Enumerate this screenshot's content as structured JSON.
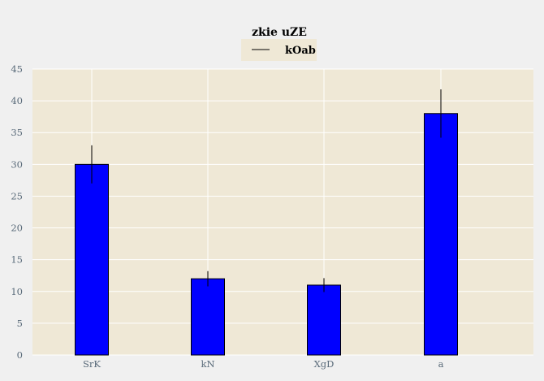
{
  "chart_data": {
    "type": "bar",
    "title": "zkie uZE",
    "categories": [
      "SrK",
      "kN",
      "XgD",
      "a"
    ],
    "series": [
      {
        "name": "kOab",
        "values": [
          30,
          12,
          11,
          38
        ],
        "errors": [
          3,
          1.2,
          1.1,
          3.8
        ],
        "color": "#0000ff"
      }
    ],
    "xlabel": "",
    "ylabel": "",
    "ylim": [
      0,
      45
    ],
    "yticks": [
      0,
      5,
      10,
      15,
      20,
      25,
      30,
      35,
      40,
      45
    ],
    "grid": true,
    "legend_position": "top-center",
    "colors": {
      "background": "#f0f0f0",
      "plot_background": "#efe8d6",
      "grid": "#ffffff",
      "bar_edge": "#000000",
      "error_bar": "#000000",
      "tick_text": "#5a6b7a"
    }
  }
}
